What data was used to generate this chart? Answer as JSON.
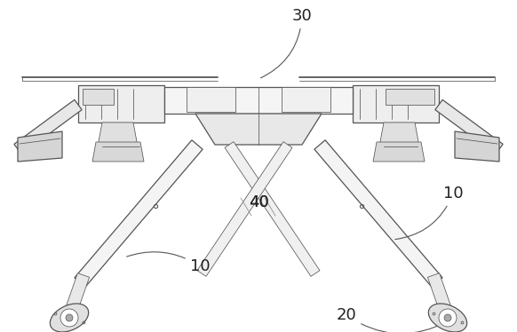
{
  "bg_color": "#ffffff",
  "line_color": "#555555",
  "label_color": "#222222",
  "fig_width": 5.82,
  "fig_height": 3.74,
  "label_fontsize": 13,
  "lw_main": 0.9,
  "lw_thin": 0.55,
  "lw_thick": 1.3
}
